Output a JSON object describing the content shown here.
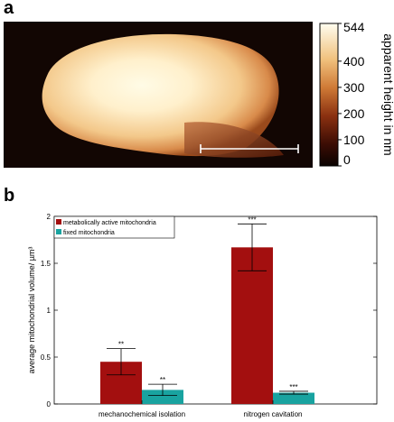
{
  "panels": {
    "a": "a",
    "b": "b"
  },
  "colorbar": {
    "label": "apparent height in nm",
    "ticks": [
      "544",
      "400",
      "300",
      "200",
      "100",
      "0"
    ],
    "max": 544
  },
  "colors": {
    "metabolically_active": "#a30f0f",
    "fixed": "#19a3a0",
    "background_dark": "#120603"
  },
  "chart_data": {
    "type": "bar",
    "categories": [
      "mechanochemical isolation",
      "nitrogen cavitation"
    ],
    "series": [
      {
        "name": "metabolically active mitochondria",
        "values": [
          0.45,
          1.67
        ],
        "errors": [
          0.14,
          0.25
        ],
        "significance": [
          "**",
          "***"
        ]
      },
      {
        "name": "fixed mitochondria",
        "values": [
          0.15,
          0.12
        ],
        "errors": [
          0.06,
          0.015
        ],
        "significance": [
          "**",
          "***"
        ]
      }
    ],
    "ylabel": "average mitochondrial volume/ µm³",
    "xlabel": "",
    "ylim": [
      0,
      2
    ],
    "yticks": [
      "0",
      "0.5",
      "1",
      "1.5",
      "2"
    ],
    "legend_position": "top-left"
  }
}
